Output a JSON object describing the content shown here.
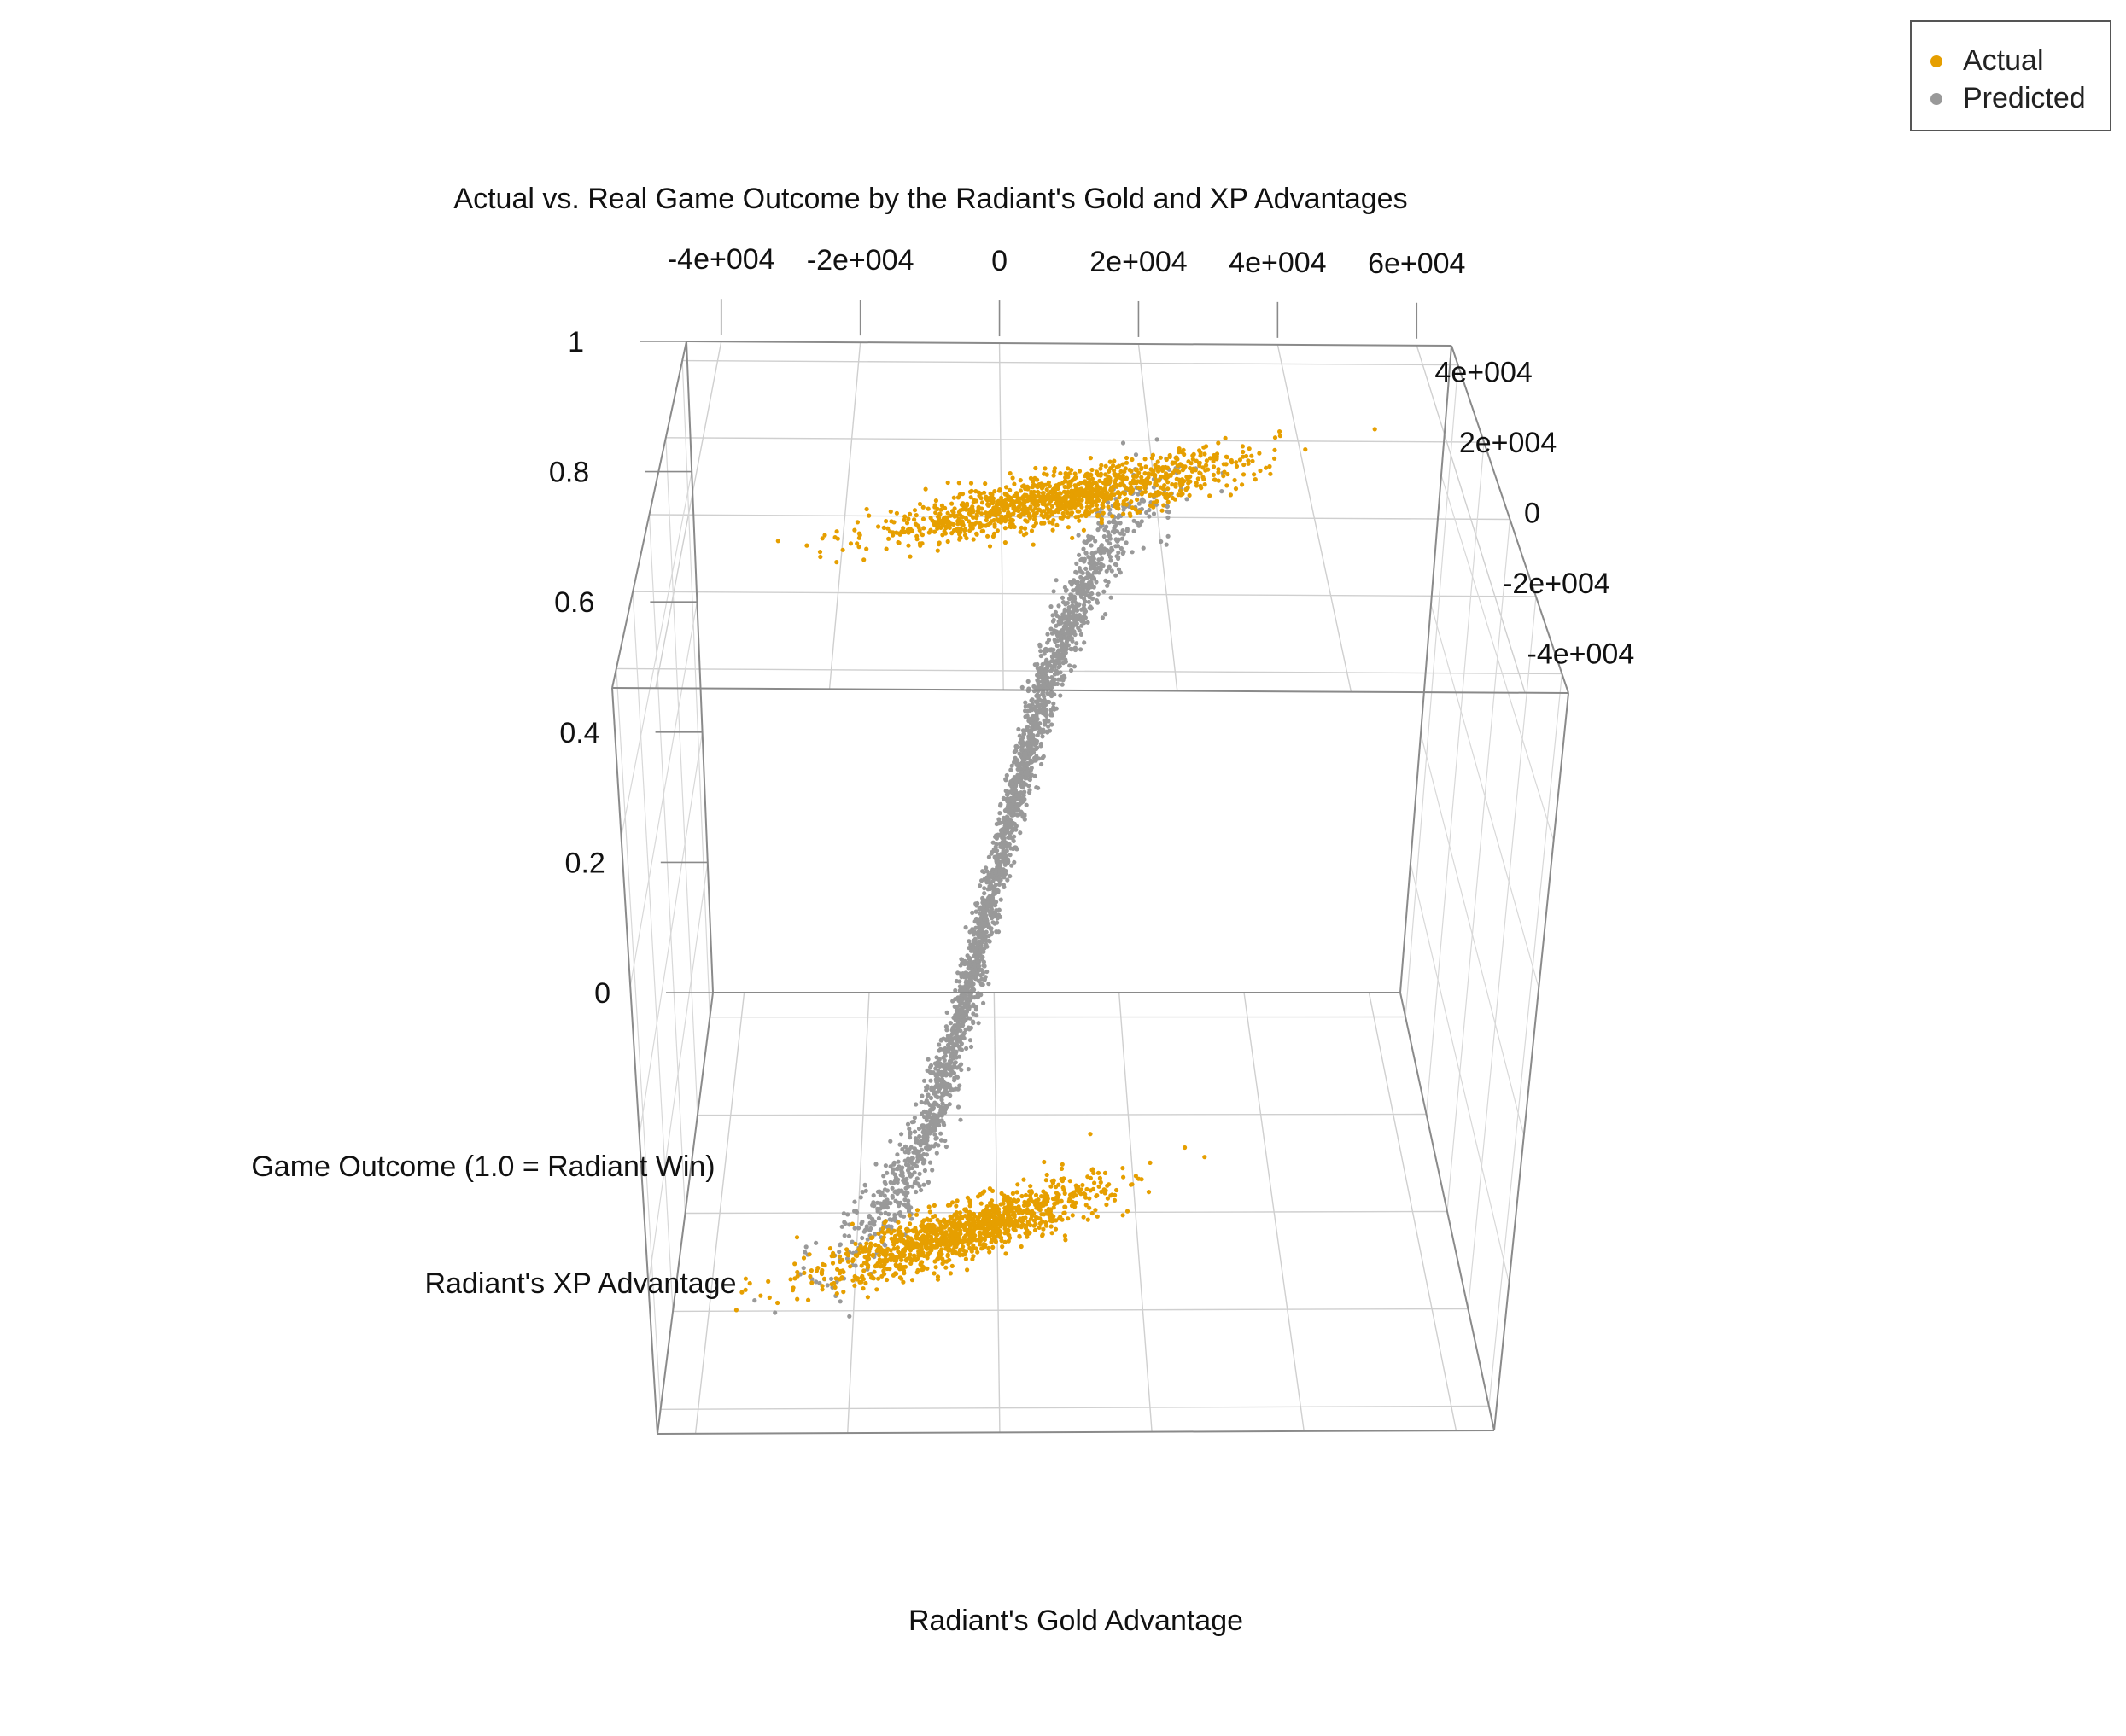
{
  "chart_data": {
    "type": "scatter",
    "title": "Actual vs. Real Game Outcome by the Radiant's Gold and XP Advantages",
    "xlabel": "Radiant's Gold Advantage",
    "ylabel": "Radiant's XP Advantage",
    "zlabel": "Game Outcome (1.0 = Radiant Win)",
    "x_ticks": [
      "-4e+004",
      "-2e+004",
      "0",
      "2e+004",
      "4e+004",
      "6e+004"
    ],
    "y_ticks": [
      "4e+004",
      "2e+004",
      "0",
      "-2e+004",
      "-4e+004"
    ],
    "z_ticks": [
      "1",
      "0.8",
      "0.6",
      "0.4",
      "0.2",
      "0"
    ],
    "xlim": [
      -45000,
      65000
    ],
    "ylim": [
      -45000,
      45000
    ],
    "zlim": [
      0,
      1
    ],
    "grid": true,
    "legend_position": "top-right",
    "series": [
      {
        "name": "Actual",
        "color": "#E69F00",
        "description_of_distribution": "two clusters at z=0 and z=1, gold and XP advantages correlated",
        "clusters": [
          {
            "z": 1,
            "x_center": 8000,
            "y_center": 5000,
            "x_spread": 12000,
            "y_spread": 8000
          },
          {
            "z": 0,
            "x_center": -5000,
            "y_center": -4000,
            "x_spread": 10000,
            "y_spread": 7000
          }
        ]
      },
      {
        "name": "Predicted",
        "color": "#999999",
        "description_of_distribution": "sigmoid curve in gold advantage from z=0 to z=1",
        "sigmoid": {
          "x_mid": 0,
          "scale": 6000
        }
      }
    ]
  },
  "legend": {
    "items": [
      {
        "label": "Actual",
        "color": "#E69F00"
      },
      {
        "label": "Predicted",
        "color": "#999999"
      }
    ]
  }
}
